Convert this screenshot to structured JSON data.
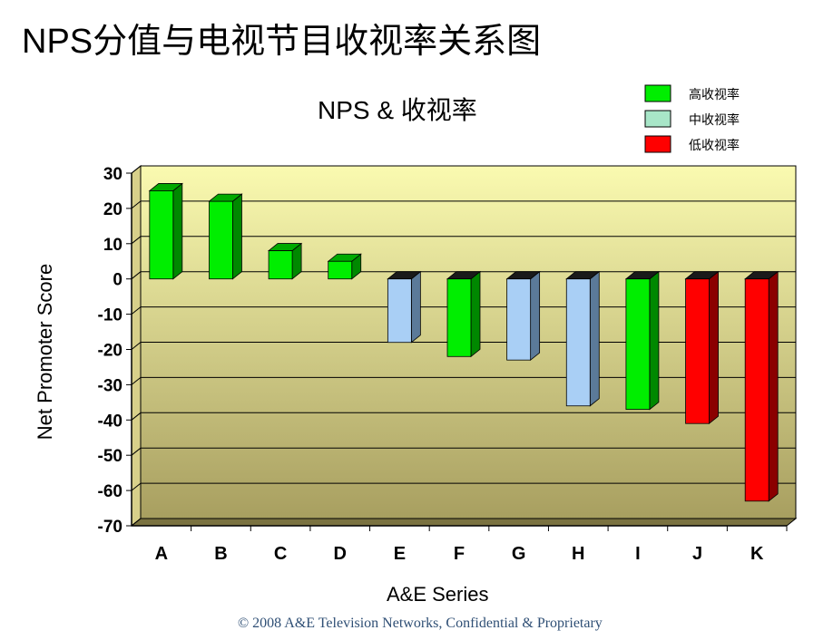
{
  "slide_title": "NPS分值与电视节目收视率关系图",
  "footer": "© 2008 A&E Television Networks, Confidential & Proprietary",
  "chart_data": {
    "type": "bar",
    "title": "NPS & 收视率",
    "xlabel": "A&E Series",
    "ylabel": "Net Promoter Score",
    "ylim": [
      -70,
      30
    ],
    "yticks": [
      "30",
      "20",
      "10",
      "0",
      "-10",
      "-20",
      "-30",
      "-40",
      "-50",
      "-60",
      "-70"
    ],
    "grid": true,
    "legend_position": "top-right",
    "legend": [
      {
        "label": "高收视率",
        "color": "#00ee00"
      },
      {
        "label": "中收视率",
        "color": "#a8e6c8"
      },
      {
        "label": "低收视率",
        "color": "#ff0000"
      }
    ],
    "categories": [
      "A",
      "B",
      "C",
      "D",
      "E",
      "F",
      "G",
      "H",
      "I",
      "J",
      "K"
    ],
    "values": [
      25,
      22,
      8,
      5,
      -18,
      -22,
      -23,
      -36,
      -37,
      -41,
      -63
    ],
    "ratings": [
      "高收视率",
      "高收视率",
      "高收视率",
      "高收视率",
      "中收视率",
      "高收视率",
      "中收视率",
      "中收视率",
      "高收视率",
      "低收视率",
      "低收视率"
    ],
    "bar_colors": {
      "高收视率": {
        "front": "#00ee00",
        "side": "#008800",
        "top": "#00aa00"
      },
      "中收视率": {
        "front": "#a9cff5",
        "side": "#5b7a99",
        "top": "#1a1a1a"
      },
      "低收视率": {
        "front": "#ff0000",
        "side": "#8b0000",
        "top": "#1a1a1a"
      }
    },
    "plot_colors": {
      "top": "#fafab0",
      "bottom": "#a89f60",
      "grid": "#000000"
    }
  }
}
